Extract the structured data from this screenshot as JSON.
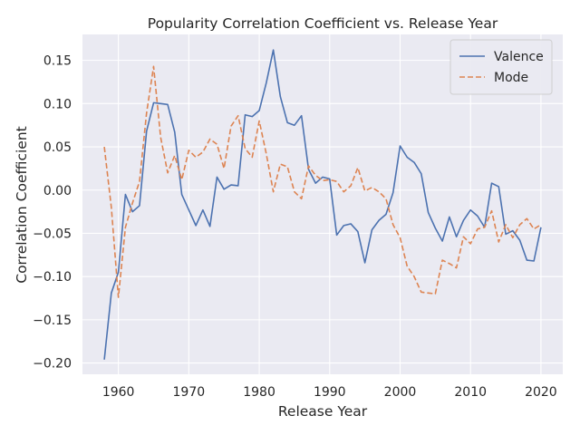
{
  "chart_data": {
    "type": "line",
    "title": "Popularity Correlation Coefficient vs. Release Year",
    "xlabel": "Release Year",
    "ylabel": "Correlation Coefficient",
    "xlim": [
      1954.9,
      2023.1
    ],
    "ylim": [
      -0.213,
      0.18
    ],
    "xticks": [
      1960,
      1970,
      1980,
      1990,
      2000,
      2010,
      2020
    ],
    "xtick_labels": [
      "1960",
      "1970",
      "1980",
      "1990",
      "2000",
      "2010",
      "2020"
    ],
    "yticks": [
      -0.2,
      -0.15,
      -0.1,
      -0.05,
      0.0,
      0.05,
      0.1,
      0.15
    ],
    "ytick_labels": [
      "−0.20",
      "−0.15",
      "−0.10",
      "−0.05",
      "0.00",
      "0.05",
      "0.10",
      "0.15"
    ],
    "grid": true,
    "legend_position": "top-right",
    "x": [
      1958,
      1959,
      1960,
      1961,
      1962,
      1963,
      1964,
      1965,
      1966,
      1967,
      1968,
      1969,
      1970,
      1971,
      1972,
      1973,
      1974,
      1975,
      1976,
      1977,
      1978,
      1979,
      1980,
      1981,
      1982,
      1983,
      1984,
      1985,
      1986,
      1987,
      1988,
      1989,
      1990,
      1991,
      1992,
      1993,
      1994,
      1995,
      1996,
      1997,
      1998,
      1999,
      2000,
      2001,
      2002,
      2003,
      2004,
      2005,
      2006,
      2007,
      2008,
      2009,
      2010,
      2011,
      2012,
      2013,
      2014,
      2015,
      2016,
      2017,
      2018,
      2019,
      2020
    ],
    "series": [
      {
        "name": "Valence",
        "style": "solid",
        "color": "#4c72b0",
        "values": [
          -0.196,
          -0.119,
          -0.095,
          -0.005,
          -0.025,
          -0.018,
          0.068,
          0.101,
          0.1,
          0.099,
          0.067,
          -0.005,
          -0.023,
          -0.041,
          -0.023,
          -0.042,
          0.015,
          0.001,
          0.006,
          0.005,
          0.087,
          0.085,
          0.092,
          0.124,
          0.162,
          0.108,
          0.078,
          0.075,
          0.086,
          0.024,
          0.008,
          0.015,
          0.013,
          -0.052,
          -0.041,
          -0.039,
          -0.048,
          -0.084,
          -0.046,
          -0.035,
          -0.028,
          -0.003,
          0.051,
          0.038,
          0.032,
          0.019,
          -0.026,
          -0.044,
          -0.059,
          -0.031,
          -0.054,
          -0.035,
          -0.023,
          -0.03,
          -0.043,
          0.008,
          0.004,
          -0.051,
          -0.047,
          -0.058,
          -0.081,
          -0.082,
          -0.043
        ]
      },
      {
        "name": "Mode",
        "style": "dashed",
        "color": "#dd8452",
        "values": [
          0.05,
          -0.02,
          -0.124,
          -0.043,
          -0.015,
          0.01,
          0.089,
          0.143,
          0.061,
          0.02,
          0.04,
          0.012,
          0.046,
          0.038,
          0.044,
          0.059,
          0.053,
          0.025,
          0.074,
          0.086,
          0.048,
          0.038,
          0.08,
          0.042,
          -0.002,
          0.03,
          0.027,
          -0.002,
          -0.01,
          0.028,
          0.017,
          0.011,
          0.012,
          0.01,
          -0.002,
          0.005,
          0.026,
          -0.001,
          0.003,
          -0.002,
          -0.01,
          -0.04,
          -0.055,
          -0.088,
          -0.1,
          -0.118,
          -0.119,
          -0.12,
          -0.081,
          -0.085,
          -0.09,
          -0.054,
          -0.062,
          -0.045,
          -0.043,
          -0.024,
          -0.06,
          -0.04,
          -0.055,
          -0.04,
          -0.033,
          -0.045,
          -0.04
        ]
      }
    ]
  }
}
